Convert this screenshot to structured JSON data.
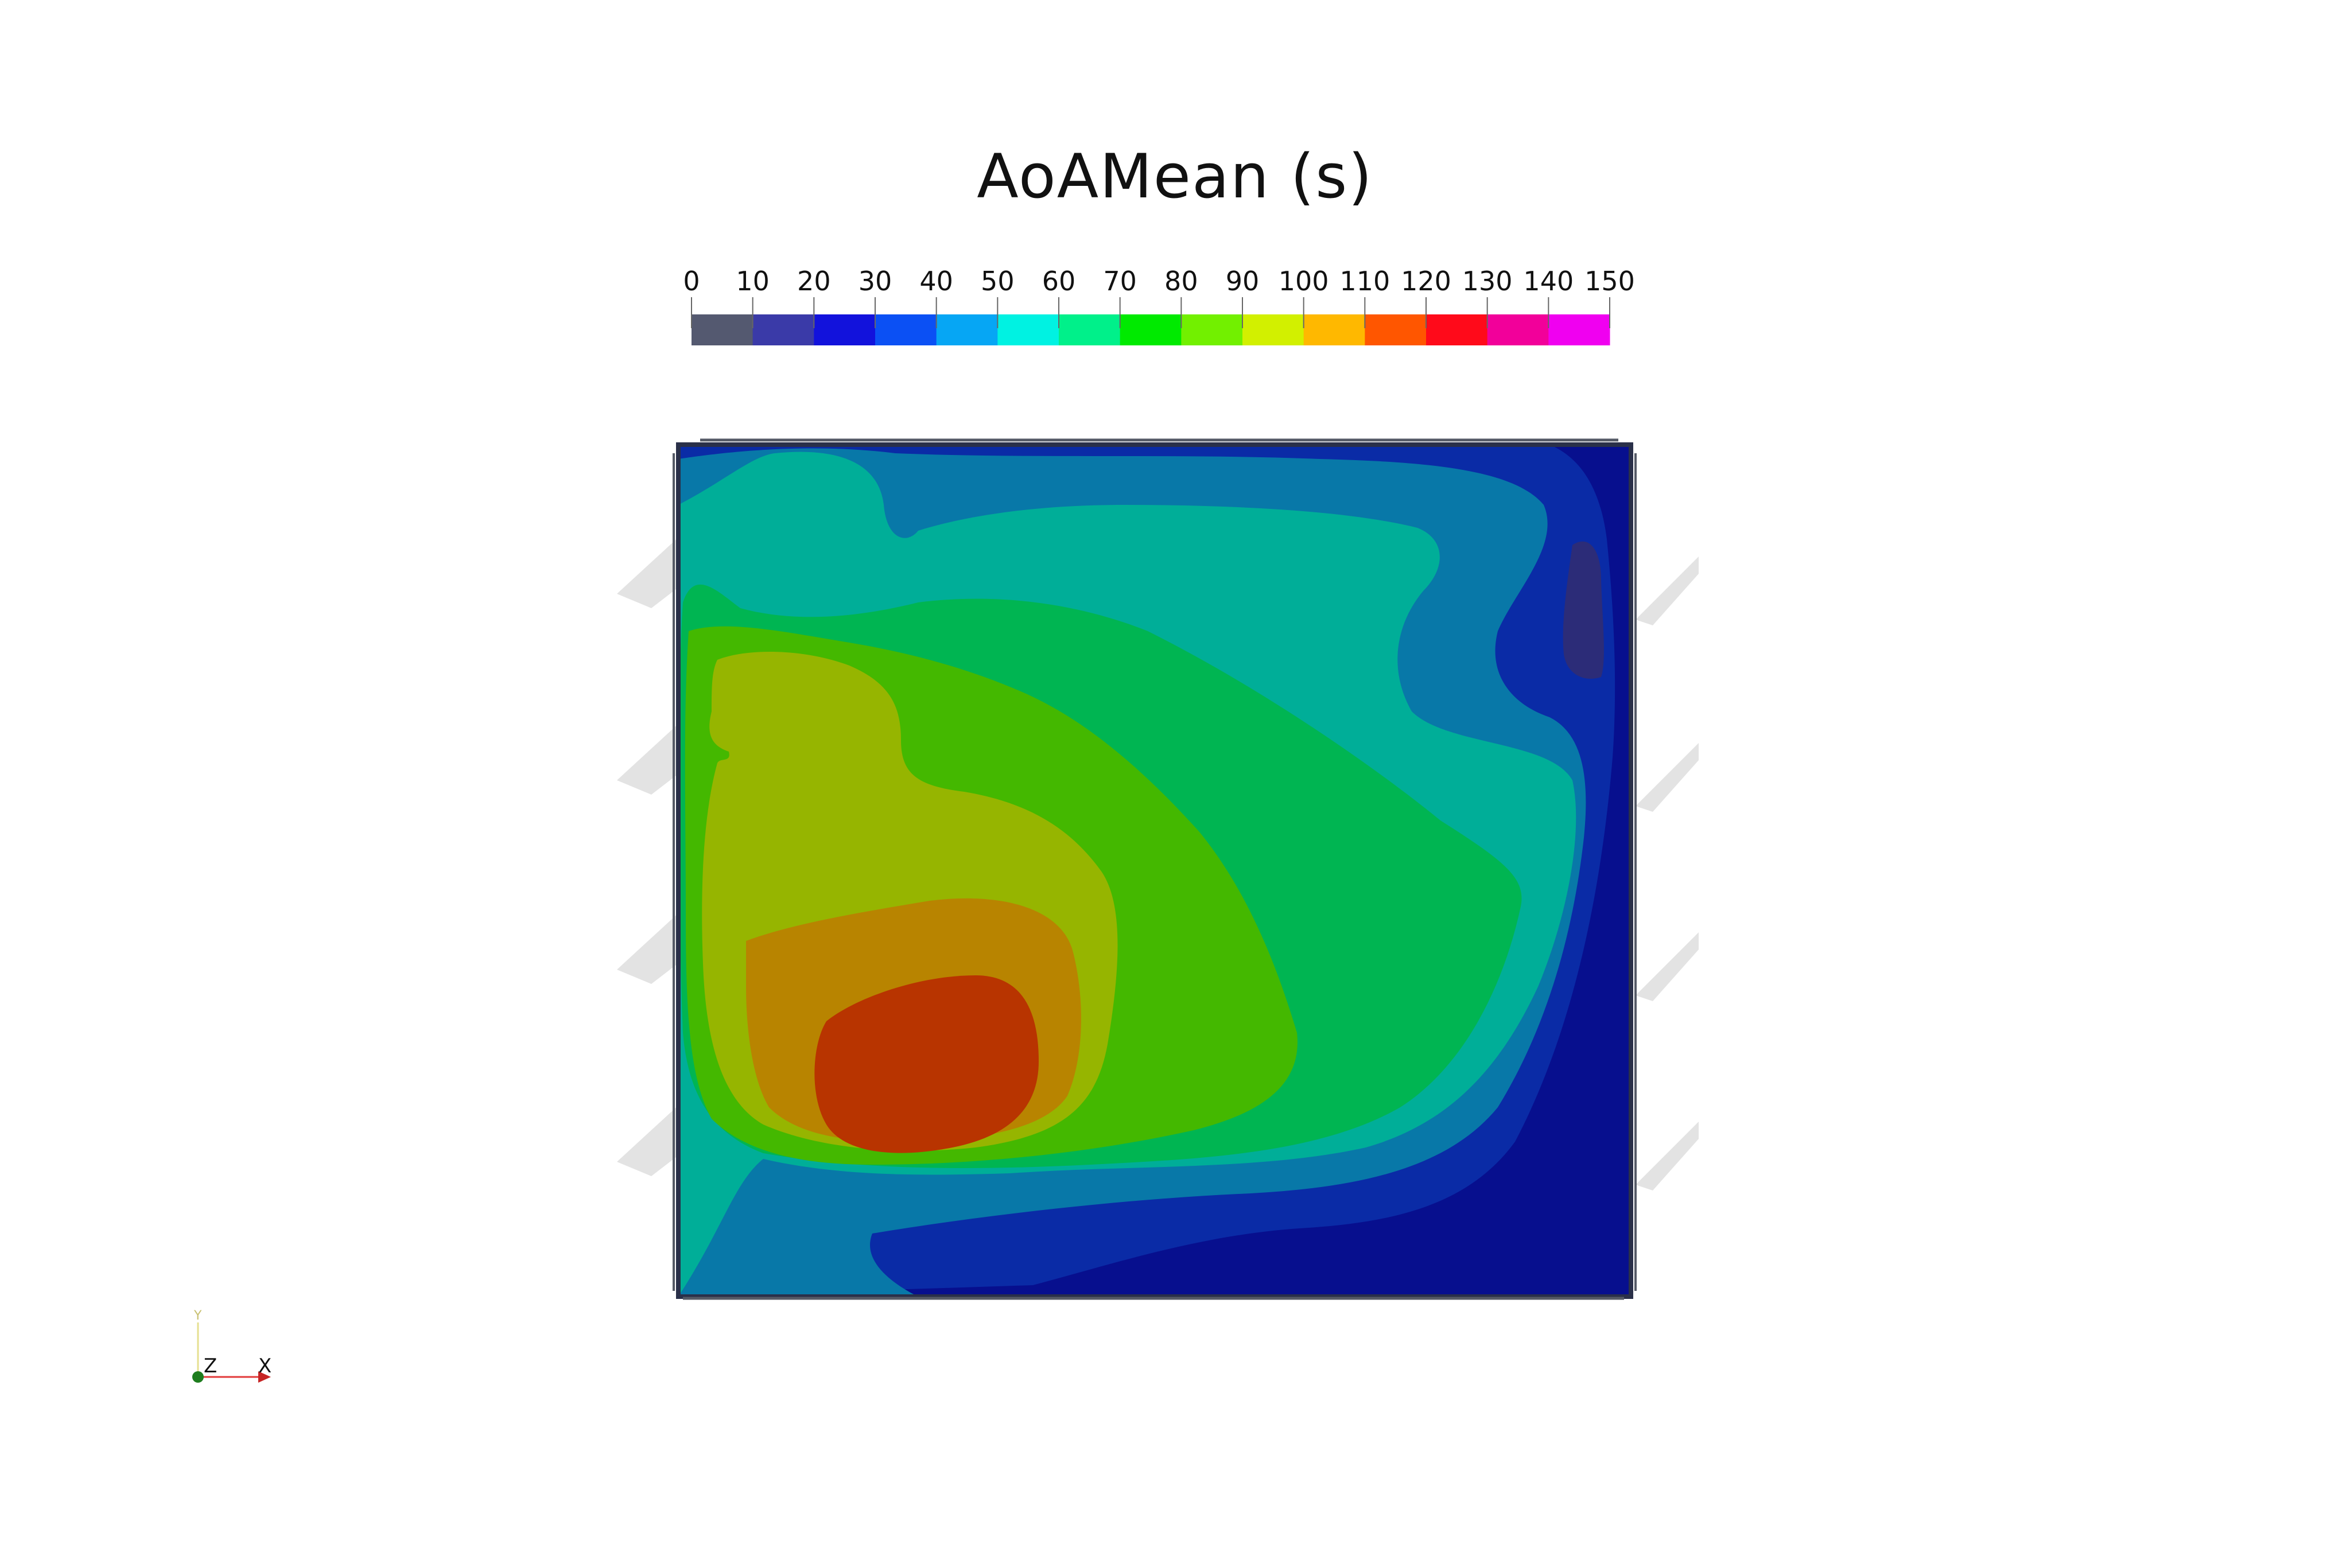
{
  "title": "AoAMean (s)",
  "colorbar": {
    "tick_labels": [
      "0",
      "10",
      "20",
      "30",
      "40",
      "50",
      "60",
      "70",
      "80",
      "90",
      "100",
      "110",
      "120",
      "130",
      "140",
      "150"
    ],
    "bins": [
      {
        "from": 0,
        "to": 10,
        "color": "#545970"
      },
      {
        "from": 10,
        "to": 20,
        "color": "#3a3aa8"
      },
      {
        "from": 20,
        "to": 30,
        "color": "#1212dc"
      },
      {
        "from": 30,
        "to": 40,
        "color": "#0b50f4"
      },
      {
        "from": 40,
        "to": 50,
        "color": "#06a6f4"
      },
      {
        "from": 50,
        "to": 60,
        "color": "#00f2e2"
      },
      {
        "from": 60,
        "to": 70,
        "color": "#00f08a"
      },
      {
        "from": 70,
        "to": 80,
        "color": "#00ea00"
      },
      {
        "from": 80,
        "to": 90,
        "color": "#72f000"
      },
      {
        "from": 90,
        "to": 100,
        "color": "#d2f000"
      },
      {
        "from": 100,
        "to": 110,
        "color": "#ffb800"
      },
      {
        "from": 110,
        "to": 120,
        "color": "#ff5600"
      },
      {
        "from": 120,
        "to": 130,
        "color": "#ff0a1a"
      },
      {
        "from": 130,
        "to": 140,
        "color": "#f2009a"
      },
      {
        "from": 140,
        "to": 150,
        "color": "#f000f0"
      }
    ],
    "range": [
      0,
      150
    ]
  },
  "field_colors": {
    "band_0": "#070f8e",
    "band_1": "#0a2ba6",
    "band_2": "#0878a8",
    "band_3": "#00ae98",
    "band_4": "#00b552",
    "band_5": "#44b800",
    "band_6": "#96b500",
    "band_7": "#b88400",
    "band_8": "#b83400",
    "band_low": "#2c2c78",
    "frame": "#2a3049",
    "ghost": "#e0e0e0"
  },
  "axes_triad": {
    "x_label": "X",
    "y_label": "Y",
    "z_label": "Z",
    "x_color": "#e23a3a",
    "y_color": "#e6e090",
    "z_color": "#1e7d1e"
  }
}
